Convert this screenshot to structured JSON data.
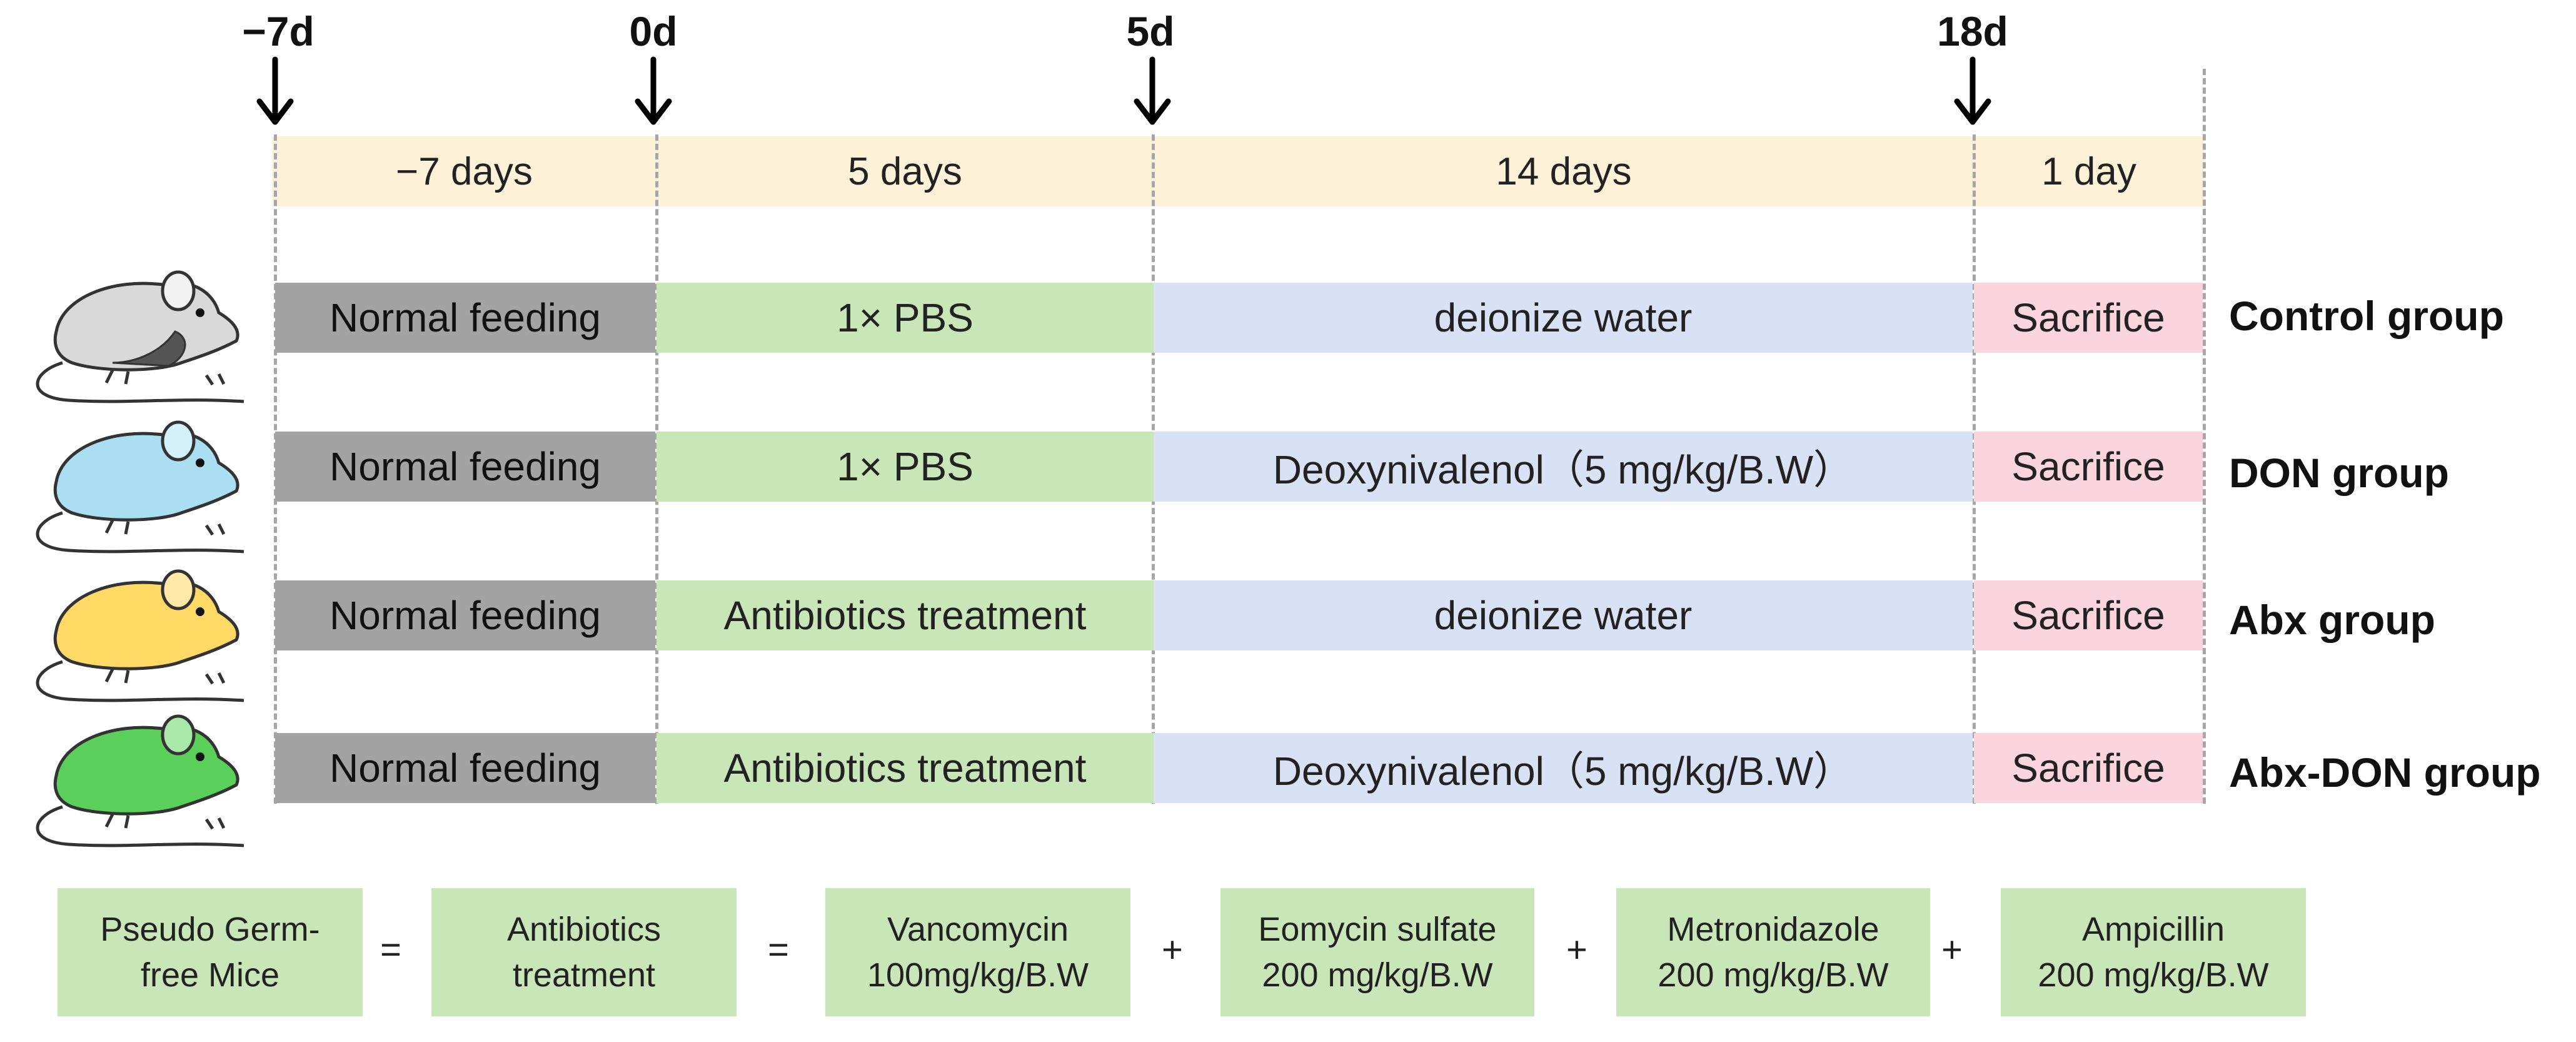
{
  "timeline": {
    "ticks": [
      "−7d",
      "0d",
      "5d",
      "18d"
    ],
    "durations": [
      "−7 days",
      "5 days",
      "14 days",
      "1 day"
    ]
  },
  "groups": [
    {
      "name": "Control group",
      "phase1": "Normal feeding",
      "phase2": "1× PBS",
      "phase3": "deionize water",
      "phase4": "Sacrifice",
      "mouse_color": "#d9d9d9"
    },
    {
      "name": "DON group",
      "phase1": "Normal feeding",
      "phase2": "1× PBS",
      "phase3": "Deoxynivalenol（5 mg/kg/B.W）",
      "phase4": "Sacrifice",
      "mouse_color": "#a9dff1"
    },
    {
      "name": "Abx group",
      "phase1": "Normal feeding",
      "phase2": "Antibiotics treatment",
      "phase3": "deionize water",
      "phase4": "Sacrifice",
      "mouse_color": "#ffd966"
    },
    {
      "name": "Abx-DON group",
      "phase1": "Normal feeding",
      "phase2": "Antibiotics treatment",
      "phase3": "Deoxynivalenol（5 mg/kg/B.W）",
      "phase4": "Sacrifice",
      "mouse_color": "#5ad05a"
    }
  ],
  "legend": {
    "pseudo": [
      "Pseudo Germ-",
      "free Mice"
    ],
    "antibiotics": [
      "Antibiotics",
      "treatment"
    ],
    "vancomycin": [
      "Vancomycin",
      "100mg/kg/B.W"
    ],
    "eomycin": [
      "Eomycin sulfate",
      "200 mg/kg/B.W"
    ],
    "metronidazole": [
      "Metronidazole",
      "200 mg/kg/B.W"
    ],
    "ampicillin": [
      "Ampicillin",
      "200 mg/kg/B.W"
    ],
    "eq": "=",
    "plus": "+"
  },
  "colors": {
    "timeline_band": "#fdf2d8",
    "normal_feeding": "#a3a3a3",
    "treatment": "#c9e6b8",
    "water": "#d9e2f5",
    "sacrifice": "#fbd5dd"
  }
}
